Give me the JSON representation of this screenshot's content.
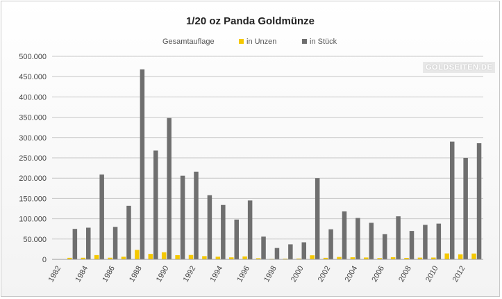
{
  "chart_data": {
    "type": "bar",
    "title": "1/20 oz Panda Goldmünze",
    "legend_title": "Gesamtauflage",
    "legend_placement": "top",
    "grid": true,
    "ylim": [
      0,
      500000
    ],
    "y_ticks": [
      "0",
      "50.000",
      "100.000",
      "150.000",
      "200.000",
      "250.000",
      "300.000",
      "350.000",
      "400.000",
      "450.000",
      "500.000"
    ],
    "x_tick_labels": [
      "1982",
      "1984",
      "1986",
      "1988",
      "1990",
      "1992",
      "1994",
      "1996",
      "1998",
      "2000",
      "2002",
      "2004",
      "2006",
      "2008",
      "2010",
      "2012"
    ],
    "categories": [
      1982,
      1983,
      1984,
      1985,
      1986,
      1987,
      1988,
      1989,
      1990,
      1991,
      1992,
      1993,
      1994,
      1995,
      1996,
      1997,
      1998,
      1999,
      2000,
      2001,
      2002,
      2003,
      2004,
      2005,
      2006,
      2007,
      2008,
      2009,
      2010,
      2011,
      2012,
      2013
    ],
    "series": [
      {
        "name": "in Unzen",
        "color": "#f5c800",
        "values": [
          0,
          3700,
          3900,
          10500,
          4000,
          6600,
          23400,
          13400,
          17400,
          10300,
          10800,
          7900,
          6700,
          4900,
          7300,
          2800,
          1400,
          1900,
          2100,
          10000,
          3700,
          5900,
          5100,
          4500,
          3100,
          5300,
          3500,
          4200,
          4400,
          14500,
          12500,
          14300
        ]
      },
      {
        "name": "in Stück",
        "color": "#6f6f6f",
        "values": [
          0,
          75000,
          78000,
          209000,
          80000,
          132000,
          468000,
          268000,
          348000,
          206000,
          216000,
          158000,
          134000,
          98000,
          145000,
          56000,
          28000,
          37000,
          42000,
          200000,
          74000,
          118000,
          102000,
          90000,
          62000,
          106000,
          70000,
          85000,
          88000,
          290000,
          250000,
          286000
        ]
      }
    ]
  },
  "watermark": "GOLDSEITEN.DE"
}
